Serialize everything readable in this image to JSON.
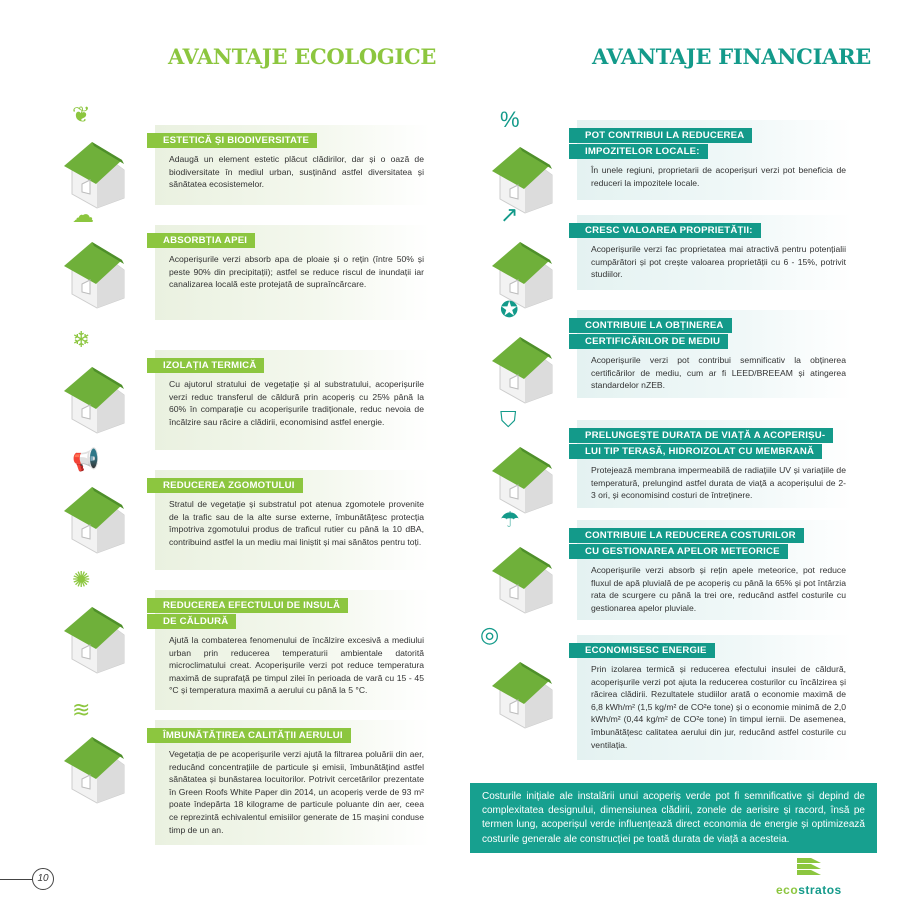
{
  "headings": {
    "ecological": "AVANTAJE ECOLOGICE",
    "financial": "AVANTAJE FINANCIARE"
  },
  "colors": {
    "green": "#8cc63f",
    "teal": "#139a8a"
  },
  "ecological": [
    {
      "title": [
        "ESTETICĂ ȘI BIODIVERSITATE"
      ],
      "icon": "leaf-icon",
      "text": "Adaugă un element estetic plăcut clădirilor, dar și o oază de biodiversitate în mediul urban, susținând astfel diversitatea și sănătatea ecosistemelor."
    },
    {
      "title": [
        "ABSORBȚIA APEI"
      ],
      "icon": "rain-cloud-icon",
      "text": "Acoperișurile verzi absorb apa de ploaie și o rețin (între 50% și peste 90% din precipitații); astfel se reduce riscul de inundații iar canalizarea locală este protejată de supraîncărcare."
    },
    {
      "title": [
        "IZOLAȚIA TERMICĂ"
      ],
      "icon": "snow-cloud-heat-icon",
      "text": "Cu ajutorul stratului de vegetație și al substratului, acoperișurile verzi reduc transferul de căldură prin acoperiș cu 25% până la 60% în comparație cu acoperișurile tradiționale, reduc nevoia de încălzire sau răcire a clădirii, economisind astfel energie."
    },
    {
      "title": [
        "REDUCEREA ZGOMOTULUI"
      ],
      "icon": "loudspeaker-icon",
      "text": "Stratul de vegetație și substratul pot atenua zgomotele provenite de la trafic sau de la alte surse externe, îmbunătățesc protecția împotriva zgomotului produs de traficul rutier cu până la 10 dBA, contribuind astfel la un mediu mai liniștit și mai sănătos pentru toți."
    },
    {
      "title": [
        "REDUCEREA EFECTULUI DE INSULĂ",
        "DE CĂLDURĂ"
      ],
      "icon": "sun-icon",
      "text": "Ajută la combaterea fenomenului de încălzire excesivă a mediului urban prin reducerea temperaturii ambientale datorită microclimatului creat. Acoperișurile verzi pot reduce temperatura maximă de suprafață pe timpul zilei în perioada de vară cu 15 - 45 °C și temperatura maximă a aerului cu până la 5 °C."
    },
    {
      "title": [
        "ÎMBUNĂTĂȚIREA CALITĂȚII AERULUI"
      ],
      "icon": "air-waves-icon",
      "text": "Vegetația de pe acoperișurile verzi ajută la filtrarea poluării din aer, reducând concentrațiile de particule și emisii, îmbunătățind astfel sănătatea și bunăstarea locuitorilor. Potrivit cercetărilor prezentate în Green Roofs White Paper din 2014, un acoperiș verde de 93 m² poate îndepărta 18 kilograme de particule poluante din aer, ceea ce reprezintă echivalentul emisiilor generate de 15 mașini conduse timp de un an."
    }
  ],
  "financial": [
    {
      "title": [
        "POT CONTRIBUI LA REDUCEREA",
        "IMPOZITELOR LOCALE:"
      ],
      "icon": "percent-icon",
      "text": "În unele regiuni, proprietarii de acoperișuri verzi pot beneficia de reduceri la impozitele locale."
    },
    {
      "title": [
        "CRESC VALOAREA PROPRIETĂȚII:"
      ],
      "icon": "growth-arrow-icon",
      "text": "Acoperișurile verzi fac proprietatea mai atractivă pentru potențialii cumpărători și pot crește valoarea proprietății cu 6 - 15%, potrivit studiilor."
    },
    {
      "title": [
        "CONTRIBUIE LA OBȚINEREA",
        "CERTIFICĂRILOR DE MEDIU"
      ],
      "icon": "certificate-badge-icon",
      "text": "Acoperișurile verzi pot contribui semnificativ la obținerea certificărilor de mediu, cum ar fi LEED/BREEAM și atingerea standardelor nZEB."
    },
    {
      "title": [
        "PRELUNGEȘTE DURATA DE VIAȚĂ A ACOPERIȘU-",
        "LUI TIP TERASĂ, HIDROIZOLAT CU MEMBRANĂ"
      ],
      "icon": "shield-clock-icon",
      "text": "Protejează membrana impermeabilă de radiațiile UV și variațiile de temperatură, prelungind astfel durata de viață a acoperișului de 2-3 ori, și economisind costuri de întreținere."
    },
    {
      "title": [
        "CONTRIBUIE LA REDUCEREA COSTURILOR",
        "CU GESTIONAREA APELOR METEORICE"
      ],
      "icon": "rain-gutter-icon",
      "text": "Acoperișurile verzi absorb și rețin apele meteorice, pot reduce fluxul de apă pluvială de pe acoperiș cu până la 65% și pot întârzia rata de scurgere cu până la trei ore, reducând astfel costurile cu gestionarea apelor pluviale."
    },
    {
      "title": [
        "ECONOMISESC ENERGIE"
      ],
      "icon": "coins-icon",
      "text": "Prin izolarea termică și reducerea efectului insulei de căldură, acoperișurile verzi pot ajuta la reducerea costurilor cu încălzirea și răcirea clădirii. Rezultatele studiilor arată o economie maximă de 6,8 kWh/m² (1,5 kg/m² de CO²e tone) și o economie minimă de 2,0 kWh/m² (0,44 kg/m² de CO²e tone) în timpul iernii.  De asemenea, îmbunătățesc calitatea aerului din jur, reducând astfel costurile cu ventilația."
    }
  ],
  "summary": "Costurile inițiale ale instalării unui acoperiș verde  pot fi semnificative și depind de complexitatea designului, dimensiunea clădirii, zonele de aerisire și racord, însă pe termen lung, acoperișul verde influențează direct economia de energie și optimizează costurile generale ale construcției pe toată durata de viață a acesteia.",
  "page_number": "10",
  "logo": {
    "text": "ecostratos"
  }
}
